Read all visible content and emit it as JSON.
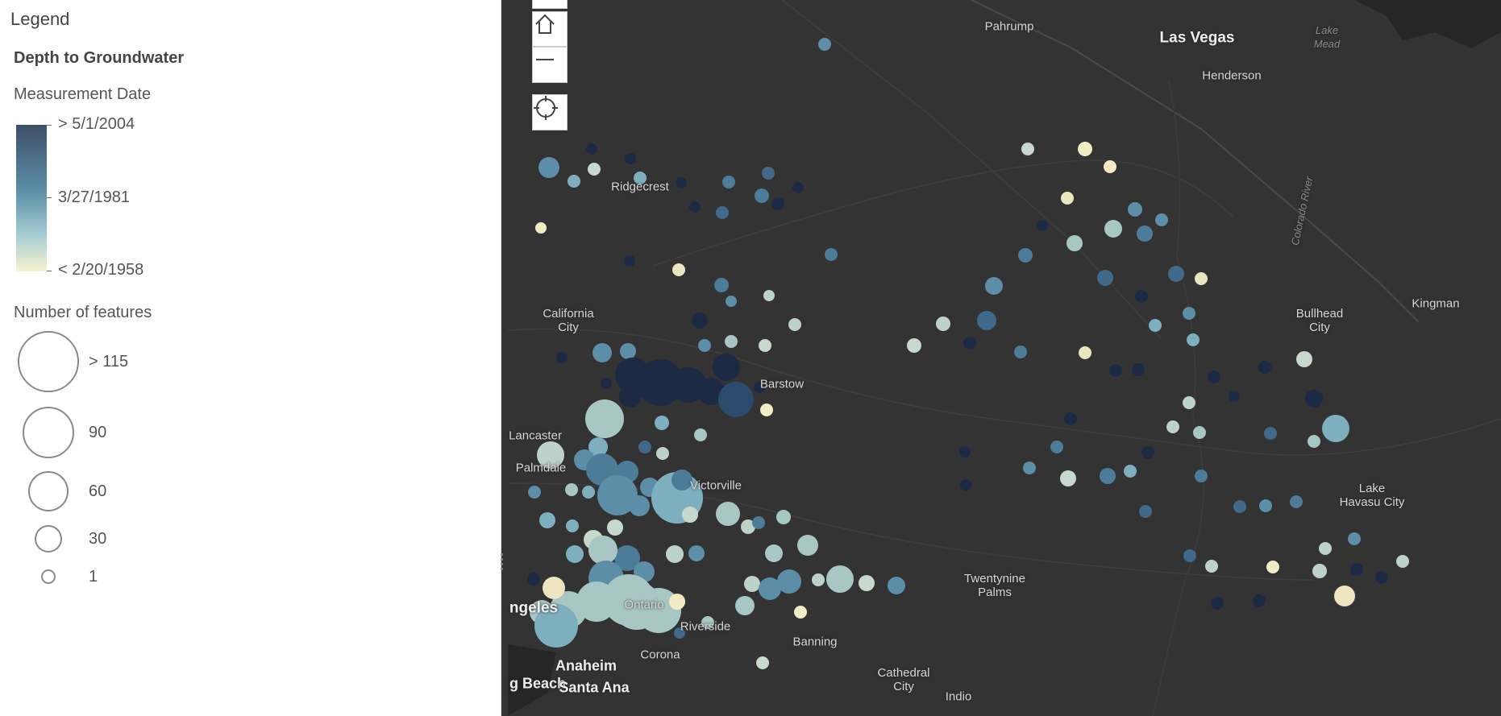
{
  "legend": {
    "title": "Legend",
    "layer_title": "Depth to Groundwater",
    "color_title": "Measurement Date",
    "color_stops": {
      "high": "> 5/1/2004",
      "mid": "3/27/1981",
      "low": "< 2/20/1958"
    },
    "ramp_colors": {
      "high": "#3d4f68",
      "mid": "#5c8ea7",
      "low": "#f7f3d0"
    },
    "size_title": "Number of features",
    "size_labels": {
      "s1": "> 115",
      "s2": "90",
      "s3": "60",
      "s4": "30",
      "s5": "1"
    }
  },
  "map_controls": {
    "home": "home-icon",
    "zoom_out": "minus-icon",
    "locate": "locate-icon"
  },
  "places": {
    "pahrump": "Pahrump",
    "las_vegas": "Las Vegas",
    "henderson": "Henderson",
    "lake_mead": "Lake\nMead",
    "ridgecrest": "Ridgecrest",
    "colorado_river": "Colorado River",
    "california_city": "California\nCity",
    "bullhead_city": "Bullhead\nCity",
    "kingman": "Kingman",
    "barstow": "Barstow",
    "lancaster": "Lancaster",
    "palmdale": "Palmdale",
    "victorville": "Victorville",
    "lake_havasu_city": "Lake\nHavasu City",
    "twentynine_palms": "Twentynine\nPalms",
    "ontario": "Ontario",
    "los_angeles": "ngeles",
    "riverside": "Riverside",
    "corona": "Corona",
    "banning": "Banning",
    "anaheim": "Anaheim",
    "long_beach": "g Beach",
    "santa_ana": "Santa Ana",
    "cathedral_city": "Cathedral\nCity",
    "indio": "Indio"
  }
}
